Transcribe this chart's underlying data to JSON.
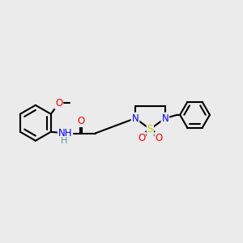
{
  "bg_color": "#ebebeb",
  "atom_colors": {
    "C": "#000000",
    "N": "#0000ff",
    "O": "#ff0000",
    "S": "#cccc00",
    "H": "#5a9a9a"
  },
  "bond_color": "#000000",
  "bond_width": 1.5,
  "font_size_atom": 8.5,
  "fig_size": [
    3.0,
    3.0
  ],
  "dpi": 100
}
